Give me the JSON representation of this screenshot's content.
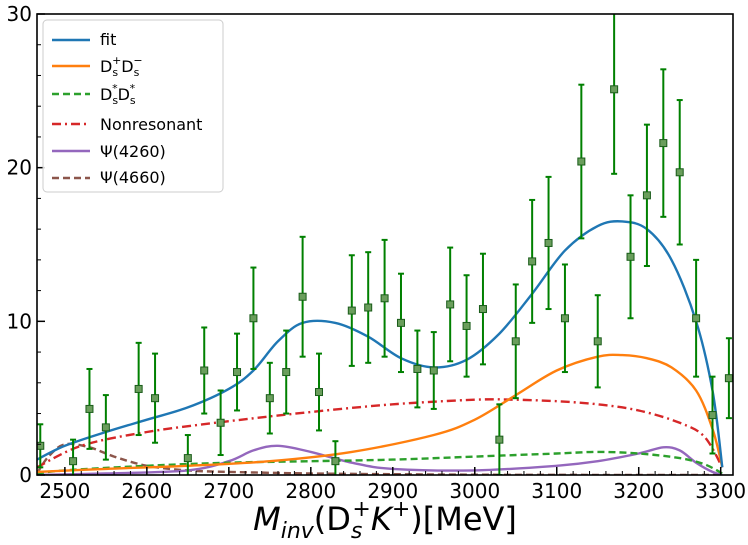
{
  "chart_data": {
    "type": "line",
    "title": "",
    "xlabel_parts": {
      "main": "M",
      "sub": "inv",
      "open": "(D",
      "sub2": "s",
      "sup1": "+",
      "k": "K",
      "sup2": "+",
      "close": ")",
      "unit": "[MeV]"
    },
    "xlim": [
      2466,
      3315
    ],
    "ylim": [
      0,
      30
    ],
    "xticks": [
      "2500",
      "2600",
      "2700",
      "2800",
      "2900",
      "3000",
      "3100",
      "3200",
      "3300"
    ],
    "yticks": [
      "0",
      "10",
      "20",
      "30"
    ],
    "grid": false,
    "legend_position": "top-left",
    "colors": {
      "fit": "#1f77b4",
      "dsdsbar": "#ff7f0e",
      "dsstar": "#2ca02c",
      "nonres": "#d62728",
      "psi4260": "#9467bd",
      "psi4660": "#8c564b",
      "data": "#008000"
    },
    "series": [
      {
        "key": "fit",
        "name": "fit",
        "style": "solid",
        "x": [
          2466,
          2500,
          2550,
          2600,
          2650,
          2700,
          2730,
          2760,
          2790,
          2830,
          2870,
          2910,
          2950,
          2990,
          3030,
          3070,
          3110,
          3150,
          3180,
          3210,
          3240,
          3270,
          3290,
          3302
        ],
        "y": [
          1.0,
          1.9,
          2.8,
          3.6,
          4.4,
          5.6,
          6.8,
          8.7,
          9.9,
          9.9,
          9.0,
          7.6,
          7.0,
          7.5,
          9.2,
          11.8,
          14.6,
          16.2,
          16.5,
          16.0,
          14.0,
          10.0,
          5.5,
          0.5
        ]
      },
      {
        "key": "dsdsbar",
        "name_parts": {
          "base": "D",
          "sub1": "s",
          "sup1": "+",
          "base2": "D",
          "sub2": "s",
          "sup2": "−"
        },
        "style": "solid",
        "x": [
          2466,
          2550,
          2650,
          2750,
          2850,
          2950,
          3000,
          3050,
          3100,
          3150,
          3180,
          3210,
          3240,
          3270,
          3290,
          3302
        ],
        "y": [
          0.2,
          0.4,
          0.6,
          0.9,
          1.5,
          2.6,
          3.6,
          5.2,
          6.8,
          7.7,
          7.8,
          7.6,
          7.0,
          5.5,
          3.0,
          0.5
        ]
      },
      {
        "key": "dsstar",
        "name_parts": {
          "base": "D",
          "sub1": "s",
          "sup1": "*",
          "base2": "D",
          "sub2": "s",
          "sup2": "*"
        },
        "style": "dashed",
        "x": [
          2466,
          2500,
          2600,
          2700,
          2800,
          2900,
          3000,
          3100,
          3150,
          3200,
          3250,
          3280,
          3302
        ],
        "y": [
          0.1,
          0.3,
          0.6,
          0.8,
          0.9,
          1.0,
          1.2,
          1.4,
          1.5,
          1.4,
          1.1,
          0.7,
          0.1
        ]
      },
      {
        "key": "nonres",
        "name": "Nonresonant",
        "style": "dashdot",
        "x": [
          2466,
          2520,
          2600,
          2700,
          2800,
          2900,
          3000,
          3050,
          3100,
          3150,
          3200,
          3250,
          3280,
          3302
        ],
        "y": [
          0.5,
          1.9,
          2.8,
          3.5,
          4.1,
          4.6,
          4.9,
          4.9,
          4.8,
          4.6,
          4.2,
          3.4,
          2.5,
          0.5
        ]
      },
      {
        "key": "psi4260",
        "name": "Ψ(4260)",
        "style": "solid",
        "x": [
          2466,
          2550,
          2650,
          2700,
          2730,
          2760,
          2800,
          2850,
          2900,
          3000,
          3100,
          3150,
          3200,
          3230,
          3250,
          3270,
          3290,
          3302
        ],
        "y": [
          0.0,
          0.1,
          0.3,
          0.9,
          1.6,
          1.9,
          1.5,
          0.8,
          0.4,
          0.3,
          0.6,
          0.9,
          1.4,
          1.8,
          1.6,
          0.8,
          0.2,
          0.0
        ]
      },
      {
        "key": "psi4660",
        "name": "Ψ(4660)",
        "style": "dashed",
        "x": [
          2466,
          2480,
          2500,
          2530,
          2560,
          2600,
          2650,
          2700,
          2800,
          2900,
          3000,
          3100,
          3200,
          3302
        ],
        "y": [
          0.1,
          1.2,
          2.0,
          1.8,
          1.2,
          0.6,
          0.3,
          0.2,
          0.1,
          0.05,
          0.02,
          0.01,
          0.0,
          0.0
        ]
      }
    ],
    "data_points": {
      "x": [
        2470,
        2510,
        2530,
        2550,
        2590,
        2610,
        2650,
        2670,
        2690,
        2710,
        2730,
        2750,
        2770,
        2790,
        2810,
        2830,
        2850,
        2870,
        2890,
        2910,
        2930,
        2950,
        2970,
        2990,
        3010,
        3030,
        3050,
        3070,
        3090,
        3110,
        3130,
        3150,
        3170,
        3190,
        3210,
        3230,
        3250,
        3270,
        3290,
        3310
      ],
      "y": [
        1.9,
        0.9,
        4.3,
        3.1,
        5.6,
        5.0,
        1.1,
        6.8,
        3.4,
        6.7,
        10.2,
        5.0,
        6.7,
        11.6,
        5.4,
        0.9,
        10.7,
        10.9,
        11.5,
        9.9,
        6.9,
        6.8,
        11.1,
        9.7,
        10.8,
        2.3,
        8.7,
        13.9,
        15.1,
        10.2,
        20.4,
        8.7,
        25.1,
        14.2,
        18.2,
        21.6,
        19.7,
        10.2,
        3.9,
        6.3
      ],
      "err": [
        1.4,
        1.4,
        2.6,
        2.1,
        3.0,
        2.9,
        1.5,
        2.8,
        2.1,
        2.5,
        3.3,
        2.3,
        2.7,
        3.9,
        2.5,
        1.3,
        3.6,
        3.6,
        3.8,
        3.2,
        2.5,
        2.5,
        3.7,
        3.3,
        3.6,
        2.3,
        3.7,
        4.0,
        4.3,
        3.5,
        5.0,
        3.0,
        5.5,
        4.0,
        4.6,
        4.8,
        4.7,
        3.8,
        2.5,
        2.6
      ]
    }
  }
}
